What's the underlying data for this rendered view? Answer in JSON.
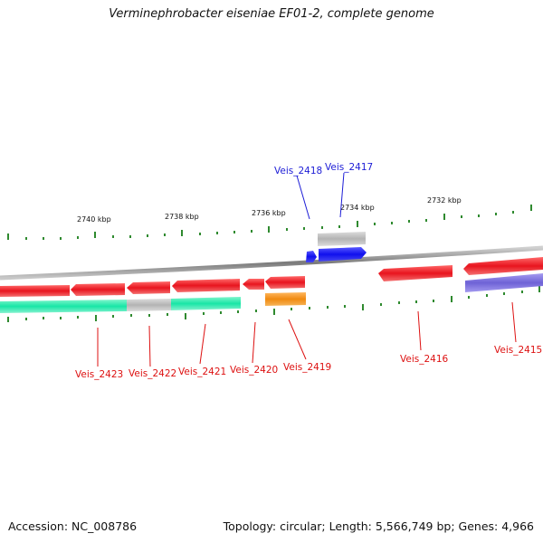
{
  "title": "Verminephrobacter eiseniae EF01-2, complete genome",
  "footer": {
    "accession": "Accession: NC_008786",
    "stats": "Topology: circular; Length: 5,566,749 bp; Genes: 4,966"
  },
  "colors": {
    "backbone": "#8a8a8a",
    "tick": "#2f8a2f",
    "label_top": "#1c1cd6",
    "label_bottom": "#dd1010",
    "red_gene": "#e8141e",
    "cyan_gene": "#18e6a6",
    "grey_gene": "#b3b3b3",
    "blue_gene": "#1010ee",
    "orange_gene": "#f08a10",
    "purple_gene": "#6e62d6"
  },
  "scale_labels": [
    "2740 kbp",
    "2738 kbp",
    "2736 kbp",
    "2734 kbp",
    "2732 kbp"
  ],
  "gene_labels": [
    "Veis_2418",
    "Veis_2417",
    "Veis_2423",
    "Veis_2422",
    "Veis_2421",
    "Veis_2420",
    "Veis_2419",
    "Veis_2416",
    "Veis_2415"
  ]
}
